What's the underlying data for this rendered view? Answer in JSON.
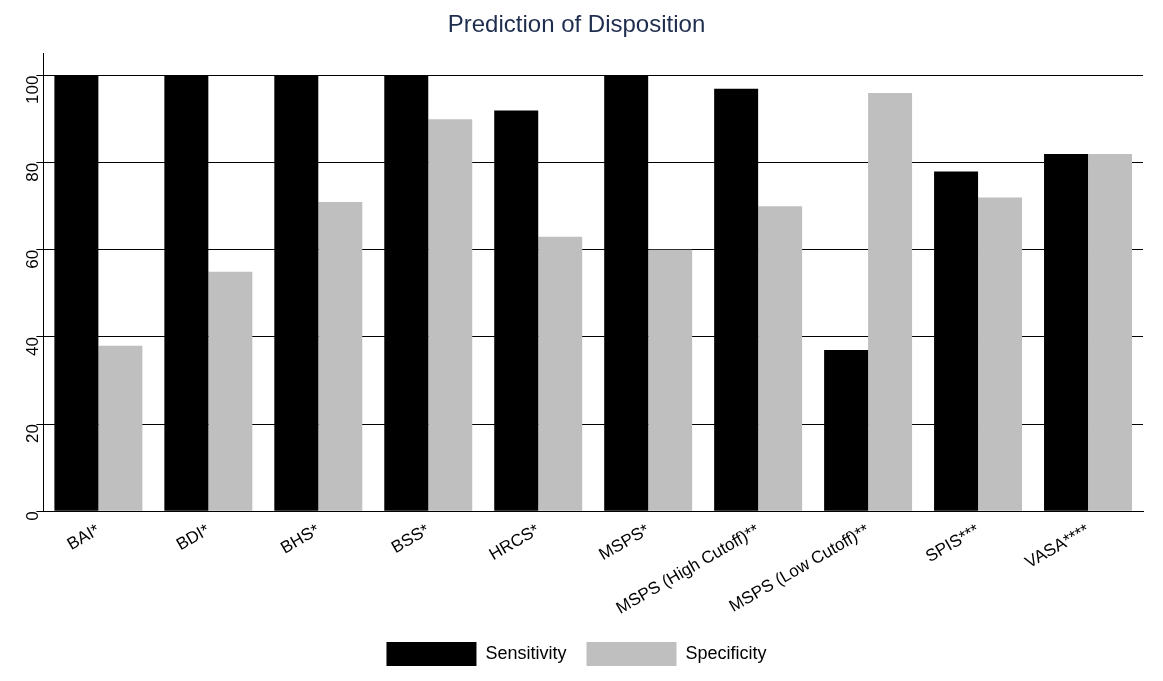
{
  "chart_data": {
    "type": "bar",
    "title": "Prediction of Disposition",
    "categories": [
      "BAI*",
      "BDI*",
      "BHS*",
      "BSS*",
      "HRCS*",
      "MSPS*",
      "MSPS (High Cutoff)**",
      "MSPS (Low Cutoff)**",
      "SPIS***",
      "VASA****"
    ],
    "series": [
      {
        "name": "Sensitivity",
        "color": "#000000",
        "values": [
          100,
          100,
          100,
          100,
          92,
          100,
          97,
          37,
          78,
          82
        ]
      },
      {
        "name": "Specificity",
        "color": "#bfbfbf",
        "values": [
          38,
          55,
          71,
          90,
          63,
          60,
          70,
          96,
          72,
          82
        ]
      }
    ],
    "ylim": [
      0,
      105
    ],
    "yticks": [
      0,
      20,
      40,
      60,
      80,
      100
    ],
    "grid": "y",
    "legend": "bottom"
  }
}
